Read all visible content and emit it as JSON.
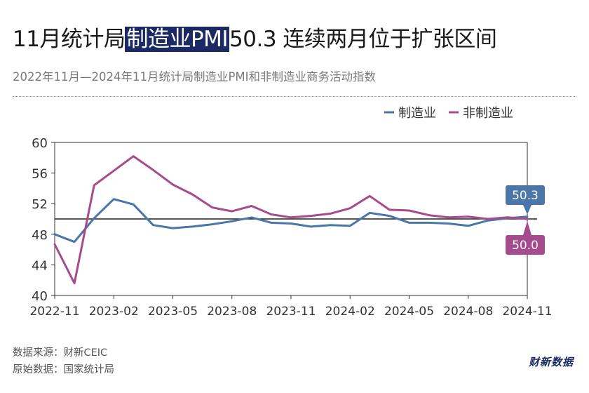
{
  "header": {
    "title_before": "11月统计局",
    "title_highlight": "制造业PMI",
    "title_after": "50.3 连续两月位于扩张区间",
    "subtitle": "2022年11月—2024年11月统计局制造业PMI和非制造业商务活动指数"
  },
  "footer": {
    "source": "数据来源：财新CEIC",
    "origin": "原始数据：国家统计局",
    "brand": "财新数据"
  },
  "colors": {
    "manufacturing": "#4a76a8",
    "non_manufacturing": "#a64b8d",
    "reference_line": "#222222",
    "highlight_bg": "#1b2a63"
  },
  "chart_data": {
    "type": "line",
    "x": [
      "2022-11",
      "2022-12",
      "2023-01",
      "2023-02",
      "2023-03",
      "2023-04",
      "2023-05",
      "2023-06",
      "2023-07",
      "2023-08",
      "2023-09",
      "2023-10",
      "2023-11",
      "2023-12",
      "2024-01",
      "2024-02",
      "2024-03",
      "2024-04",
      "2024-05",
      "2024-06",
      "2024-07",
      "2024-08",
      "2024-09",
      "2024-10",
      "2024-11"
    ],
    "x_ticks": [
      "2022-11",
      "2023-02",
      "2023-05",
      "2023-08",
      "2023-11",
      "2024-02",
      "2024-05",
      "2024-08",
      "2024-11"
    ],
    "series": [
      {
        "name": "制造业",
        "color": "#4a76a8",
        "values": [
          48.0,
          47.0,
          50.1,
          52.6,
          51.9,
          49.2,
          48.8,
          49.0,
          49.3,
          49.7,
          50.2,
          49.5,
          49.4,
          49.0,
          49.2,
          49.1,
          50.8,
          50.4,
          49.5,
          49.5,
          49.4,
          49.1,
          49.8,
          50.1,
          50.3
        ]
      },
      {
        "name": "非制造业",
        "color": "#a64b8d",
        "values": [
          46.7,
          41.6,
          54.4,
          56.3,
          58.2,
          56.4,
          54.5,
          53.2,
          51.5,
          51.0,
          51.7,
          50.6,
          50.2,
          50.4,
          50.7,
          51.4,
          53.0,
          51.2,
          51.1,
          50.5,
          50.2,
          50.3,
          50.0,
          50.2,
          50.0
        ]
      }
    ],
    "reference_line": 50,
    "ylim": [
      40,
      60
    ],
    "y_ticks": [
      40,
      44,
      48,
      52,
      56,
      60
    ],
    "legend": [
      "制造业",
      "非制造业"
    ],
    "legend_position": "top-right",
    "grid": false,
    "end_labels": [
      "50.3",
      "50.0"
    ]
  }
}
